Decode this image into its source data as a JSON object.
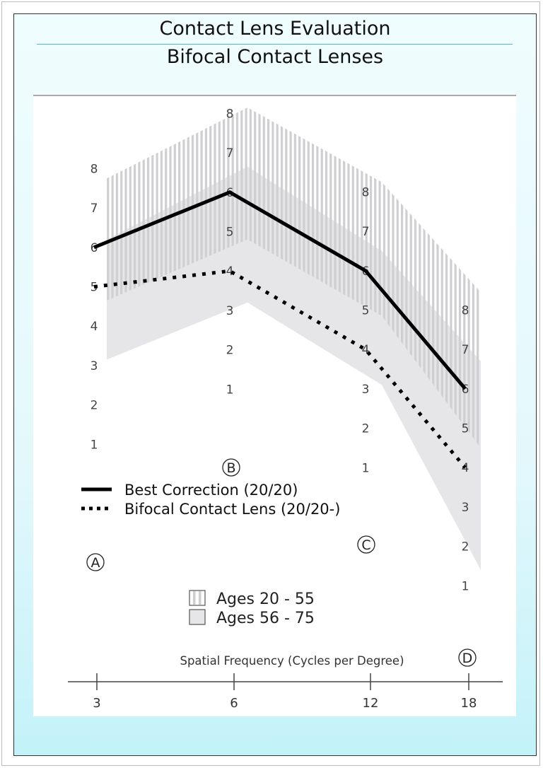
{
  "header": {
    "title": "Contact Lens Evaluation",
    "subtitle": "Bifocal Contact Lenses"
  },
  "chart_data": {
    "type": "line",
    "title": "Contact Lens Evaluation",
    "subtitle": "Bifocal Contact Lenses",
    "xlabel": "Spatial Frequency (Cycles per Degree)",
    "ylabel": "",
    "categories": [
      "3",
      "6",
      "12",
      "18"
    ],
    "column_markers": [
      "A",
      "B",
      "C",
      "D"
    ],
    "column_scale_ticks": [
      "1",
      "2",
      "3",
      "4",
      "5",
      "6",
      "7",
      "8"
    ],
    "ylim": [
      1,
      8
    ],
    "series": [
      {
        "name": "Best Correction (20/20)",
        "style": "solid",
        "values": [
          6,
          6,
          6,
          6
        ]
      },
      {
        "name": "Bifocal Contact Lens (20/20-)",
        "style": "dotted",
        "values": [
          5,
          4,
          4,
          4
        ]
      }
    ],
    "bands": [
      {
        "name": "Ages 20 - 55",
        "fill": "vertical-hatch",
        "upper": [
          7.75,
          8.15,
          8.25,
          8.45
        ],
        "lower": [
          4.65,
          4.8,
          4.85,
          4.5
        ]
      },
      {
        "name": "Ages 56 - 75",
        "fill": "solid-gray",
        "upper": [
          6.2,
          6.65,
          6.5,
          6.7
        ],
        "lower": [
          3.15,
          3.2,
          3.1,
          1.4
        ]
      }
    ],
    "grid": false,
    "legend_placement": "center-left",
    "colors": {
      "line": "#000000",
      "hatch": "#cfcfd2",
      "band": "#e6e6e8",
      "panel": "#e4f8fc",
      "title_rule": "#58b8c8"
    }
  }
}
